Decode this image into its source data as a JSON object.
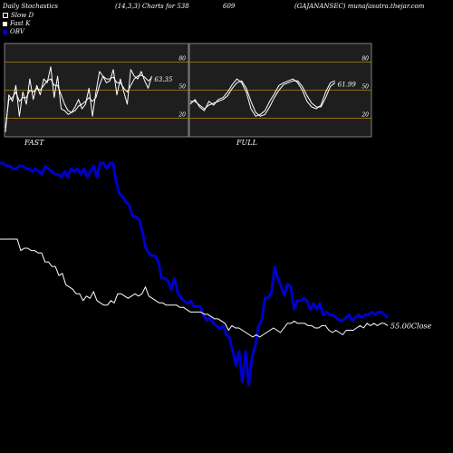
{
  "header": {
    "title": "Daily Stochastics",
    "params": "(14,3,3) Charts for 538",
    "code": "609",
    "site": "(GAJANANSEC) munafasutra.thejar.com"
  },
  "legend": [
    {
      "label": "Slow  D",
      "color": "#ffffff"
    },
    {
      "label": "Fast K",
      "color": "#ffffff"
    },
    {
      "label": "OBV",
      "color": "#0000cc"
    }
  ],
  "colors": {
    "background": "#000000",
    "panel": "#1e1e1e",
    "grid": "#b8860b",
    "line": "#ffffff",
    "obv": "#0000cc"
  },
  "chart_data": [
    {
      "type": "line",
      "title": "FAST",
      "ylim": [
        0,
        100
      ],
      "yticks": [
        20,
        50,
        80
      ],
      "last_value_label": "63.35",
      "series": [
        {
          "name": "Fast K",
          "values": [
            5,
            45,
            38,
            55,
            22,
            48,
            35,
            62,
            40,
            55,
            45,
            62,
            58,
            75,
            42,
            65,
            30,
            28,
            24,
            26,
            32,
            40,
            30,
            35,
            52,
            22,
            48,
            70,
            65,
            58,
            60,
            72,
            45,
            62,
            48,
            35,
            72,
            65,
            62,
            70,
            60,
            52,
            65
          ]
        },
        {
          "name": "Slow  D",
          "values": [
            10,
            40,
            42,
            48,
            38,
            42,
            42,
            50,
            48,
            52,
            50,
            55,
            60,
            62,
            55,
            55,
            45,
            35,
            28,
            26,
            28,
            33,
            35,
            38,
            42,
            38,
            42,
            55,
            65,
            62,
            62,
            64,
            58,
            58,
            52,
            48,
            55,
            62,
            65,
            66,
            64,
            60,
            63
          ]
        }
      ]
    },
    {
      "type": "line",
      "title": "FULL",
      "ylim": [
        0,
        100
      ],
      "yticks": [
        20,
        50,
        80
      ],
      "last_value_label": "61.99",
      "series": [
        {
          "name": "Fast K",
          "values": [
            35,
            40,
            32,
            28,
            38,
            34,
            40,
            42,
            48,
            56,
            62,
            58,
            48,
            30,
            22,
            24,
            28,
            38,
            46,
            55,
            58,
            60,
            62,
            58,
            50,
            38,
            32,
            30,
            34,
            48,
            58,
            60
          ]
        },
        {
          "name": "Slow  D",
          "values": [
            38,
            38,
            34,
            30,
            34,
            36,
            38,
            40,
            44,
            52,
            58,
            60,
            52,
            38,
            26,
            22,
            24,
            32,
            42,
            50,
            56,
            58,
            60,
            60,
            54,
            44,
            36,
            32,
            32,
            42,
            54,
            58
          ]
        }
      ]
    },
    {
      "type": "line",
      "title": "",
      "last_value_label": "55.00",
      "last_value_suffix": "Close",
      "series": [
        {
          "name": "OBV",
          "values": [
            82,
            82,
            81,
            81,
            80,
            80,
            81,
            81,
            80,
            80,
            79,
            80,
            79,
            78,
            81,
            80,
            79,
            78,
            78,
            77,
            79,
            77,
            80,
            79,
            80,
            78,
            80,
            77,
            79,
            81,
            77,
            82,
            82,
            80,
            82,
            82,
            75,
            71,
            70,
            68,
            67,
            63,
            63,
            62,
            58,
            52,
            50,
            49,
            49,
            47,
            41,
            41,
            40,
            37,
            41,
            36,
            34,
            33,
            32,
            33,
            31,
            31,
            31,
            28,
            26,
            27,
            25,
            24,
            23,
            24,
            21,
            20,
            15,
            10,
            15,
            4,
            15,
            3,
            13,
            17,
            24,
            26,
            34,
            34,
            36,
            45,
            41,
            38,
            35,
            39,
            38,
            30,
            33,
            33,
            34,
            33,
            30,
            32,
            30,
            32,
            28,
            29,
            28,
            28,
            27,
            26,
            26,
            27,
            28,
            26,
            27,
            28,
            27,
            28,
            28,
            29,
            28,
            29,
            29,
            28,
            27
          ]
        },
        {
          "name": "Close",
          "values": [
            58,
            58,
            58,
            58,
            58,
            58,
            53,
            54,
            54,
            53,
            53,
            52,
            52,
            48,
            48,
            46,
            46,
            42,
            43,
            38,
            37,
            36,
            34,
            34,
            31,
            33,
            32,
            35,
            31,
            30,
            29,
            29,
            31,
            30,
            34,
            34,
            33,
            32,
            33,
            34,
            33,
            34,
            37,
            33,
            32,
            31,
            30,
            30,
            29,
            29,
            29,
            29,
            28,
            28,
            27,
            26,
            26,
            26,
            26,
            25,
            25,
            24,
            23,
            23,
            22,
            21,
            18,
            20,
            19,
            19,
            18,
            17,
            16,
            15,
            16,
            15,
            16,
            17,
            18,
            19,
            18,
            17,
            19,
            21,
            21,
            22,
            21,
            21,
            21,
            20,
            20,
            19,
            19,
            20,
            20,
            18,
            17,
            18,
            17,
            16,
            18,
            18,
            18,
            19,
            20,
            19,
            21,
            20,
            21,
            20,
            21,
            21,
            20
          ]
        }
      ]
    }
  ]
}
